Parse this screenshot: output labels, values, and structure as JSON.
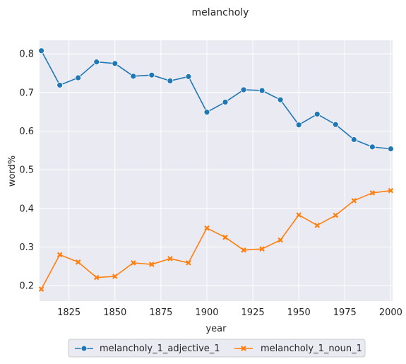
{
  "chart_data": {
    "type": "line",
    "title": "melancholy",
    "xlabel": "year",
    "ylabel": "word%",
    "xlim": [
      1809,
      2001
    ],
    "ylim": [
      0.16,
      0.835
    ],
    "xticks": [
      1825,
      1850,
      1875,
      1900,
      1925,
      1950,
      1975,
      2000
    ],
    "yticks": [
      0.2,
      0.3,
      0.4,
      0.5,
      0.6,
      0.7,
      0.8
    ],
    "grid": true,
    "legend_position": "bottom-center",
    "x": [
      1810,
      1820,
      1830,
      1840,
      1850,
      1860,
      1870,
      1880,
      1890,
      1900,
      1910,
      1920,
      1930,
      1940,
      1950,
      1960,
      1970,
      1980,
      1990,
      2000
    ],
    "series": [
      {
        "name": "melancholy_1_adjective_1",
        "color": "#1f77b4",
        "marker": "circle",
        "values": [
          0.808,
          0.719,
          0.738,
          0.779,
          0.775,
          0.742,
          0.745,
          0.73,
          0.741,
          0.649,
          0.675,
          0.707,
          0.705,
          0.681,
          0.616,
          0.644,
          0.617,
          0.578,
          0.559,
          0.554
        ]
      },
      {
        "name": "melancholy_1_noun_1",
        "color": "#ff7f0e",
        "marker": "x",
        "values": [
          0.191,
          0.28,
          0.261,
          0.221,
          0.224,
          0.259,
          0.255,
          0.27,
          0.259,
          0.349,
          0.325,
          0.292,
          0.295,
          0.318,
          0.383,
          0.356,
          0.382,
          0.42,
          0.44,
          0.446
        ]
      }
    ]
  }
}
